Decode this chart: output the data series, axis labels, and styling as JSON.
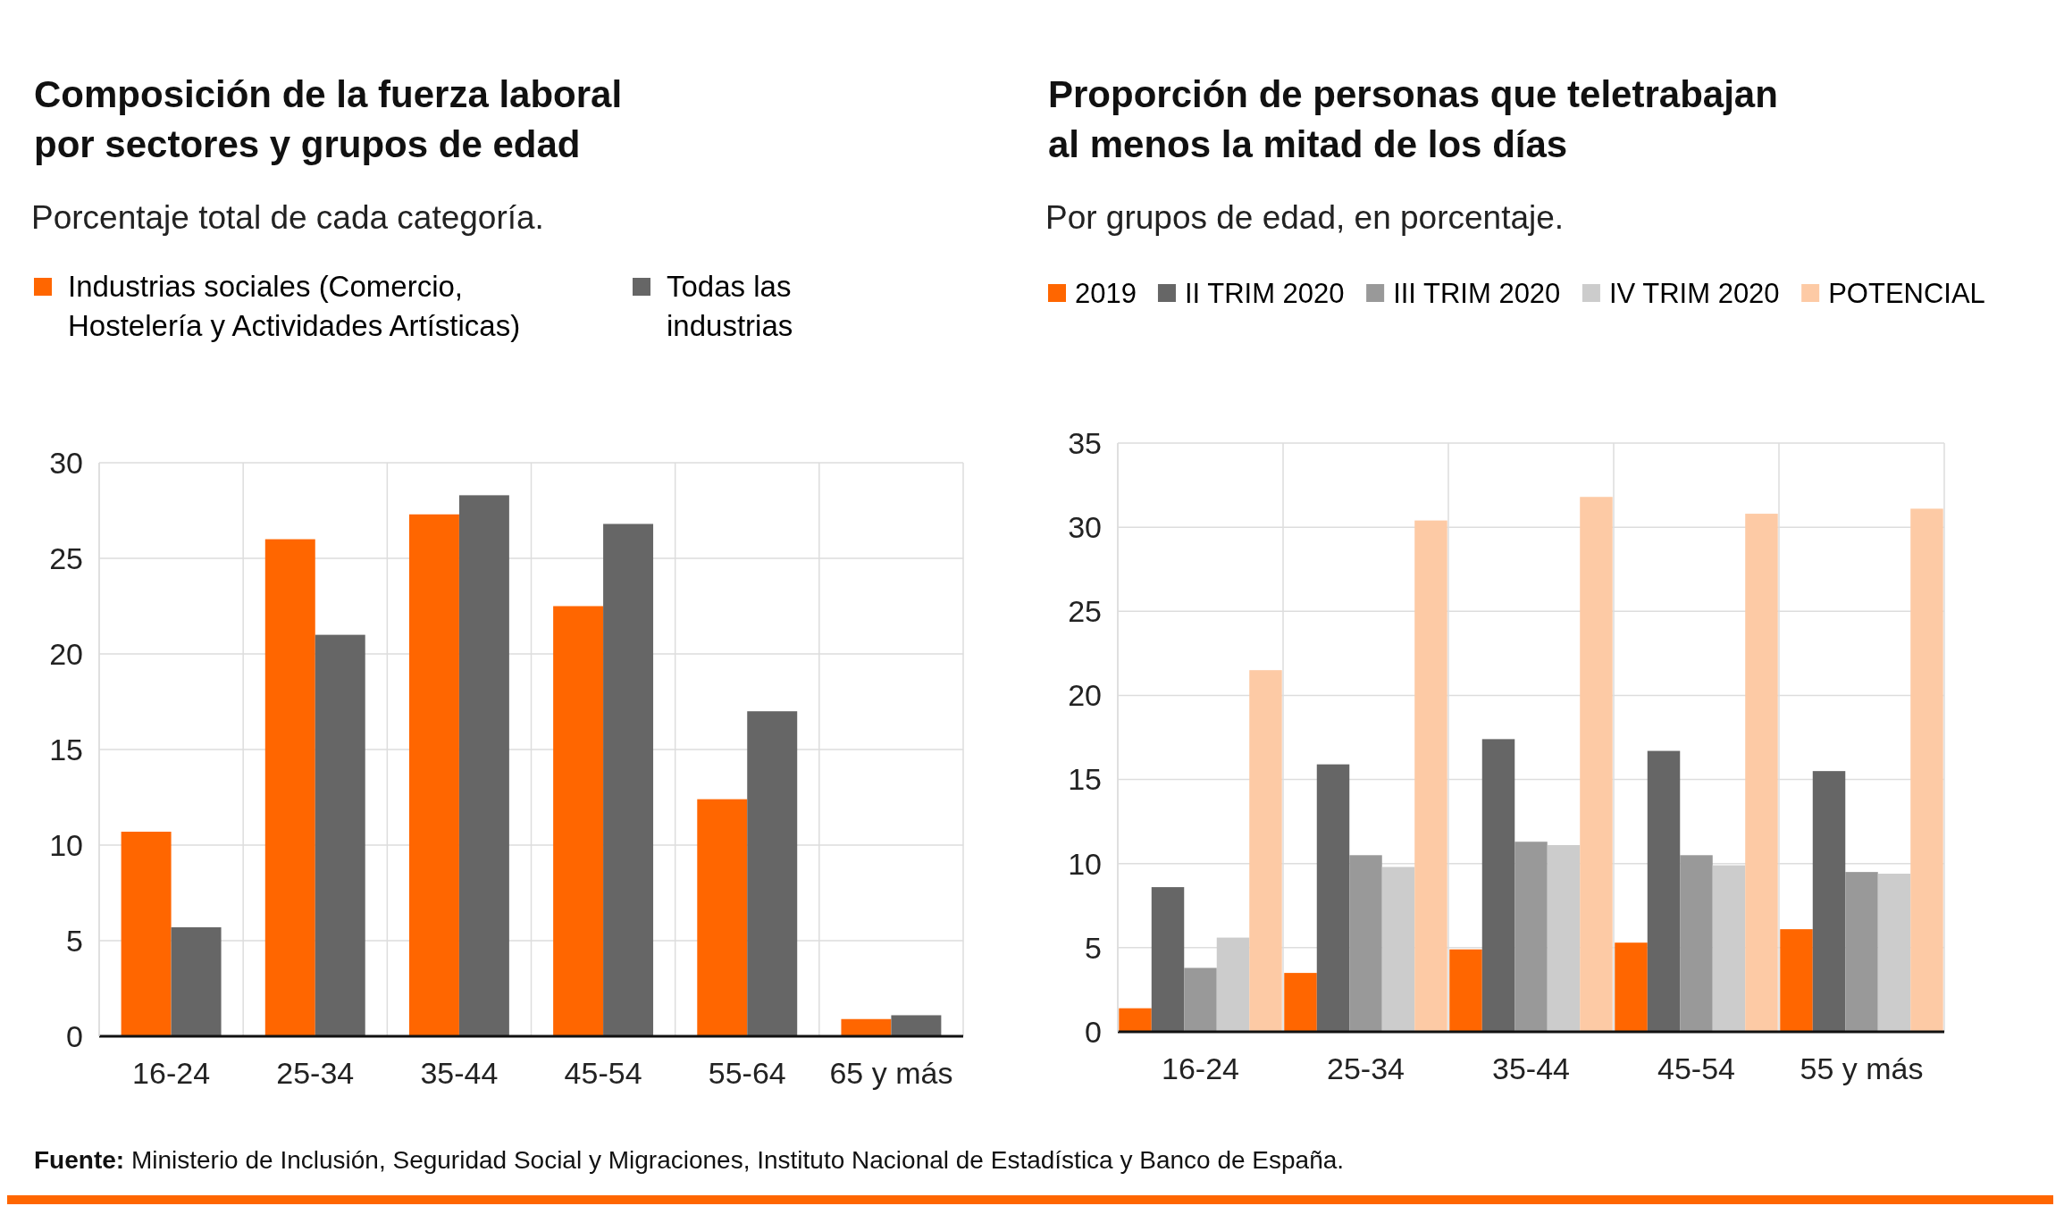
{
  "chart_data": [
    {
      "type": "bar",
      "title": "Composición de la fuerza laboral por sectores y grupos de edad",
      "subtitle": "Porcentaje total de cada categoría.",
      "categories": [
        "16-24",
        "25-34",
        "35-44",
        "45-54",
        "55-64",
        "65 y más"
      ],
      "series": [
        {
          "name": "Industrias sociales (Comercio, Hostelería y Actividades Artísticas)",
          "color": "#ff6600",
          "values": [
            10.7,
            26.0,
            27.3,
            22.5,
            12.4,
            0.9
          ]
        },
        {
          "name": "Todas las industrias",
          "color": "#666666",
          "values": [
            5.7,
            21.0,
            28.3,
            26.8,
            17.0,
            1.1
          ]
        }
      ],
      "ylim": [
        0,
        30
      ],
      "yticks": [
        0,
        5,
        10,
        15,
        20,
        25,
        30
      ],
      "grid": true,
      "legend": "top left",
      "annotations": [
        "Fuente: Ministerio de Inclusión, Seguridad Social y Migraciones, Instituto Nacional de Estadística y Banco de España."
      ]
    },
    {
      "type": "bar",
      "title": "Proporción de personas que teletrabajan al menos la mitad de los días",
      "subtitle": "Por grupos de edad, en porcentaje.",
      "categories": [
        "16-24",
        "25-34",
        "35-44",
        "45-54",
        "55 y más"
      ],
      "series": [
        {
          "name": "2019",
          "color": "#ff6600",
          "values": [
            1.4,
            3.5,
            4.9,
            5.3,
            6.1
          ]
        },
        {
          "name": "II TRIM 2020",
          "color": "#666666",
          "values": [
            8.6,
            15.9,
            17.4,
            16.7,
            15.5
          ]
        },
        {
          "name": "III TRIM 2020",
          "color": "#999999",
          "values": [
            3.8,
            10.5,
            11.3,
            10.5,
            9.5
          ]
        },
        {
          "name": "IV TRIM 2020",
          "color": "#cccccc",
          "values": [
            5.6,
            9.8,
            11.1,
            9.9,
            9.4
          ]
        },
        {
          "name": "POTENCIAL",
          "color": "#fdcaa5",
          "values": [
            21.5,
            30.4,
            31.8,
            30.8,
            31.1
          ]
        }
      ],
      "ylim": [
        0,
        35
      ],
      "yticks": [
        0,
        5,
        10,
        15,
        20,
        25,
        30,
        35
      ],
      "grid": true,
      "legend": "top left"
    }
  ]
}
